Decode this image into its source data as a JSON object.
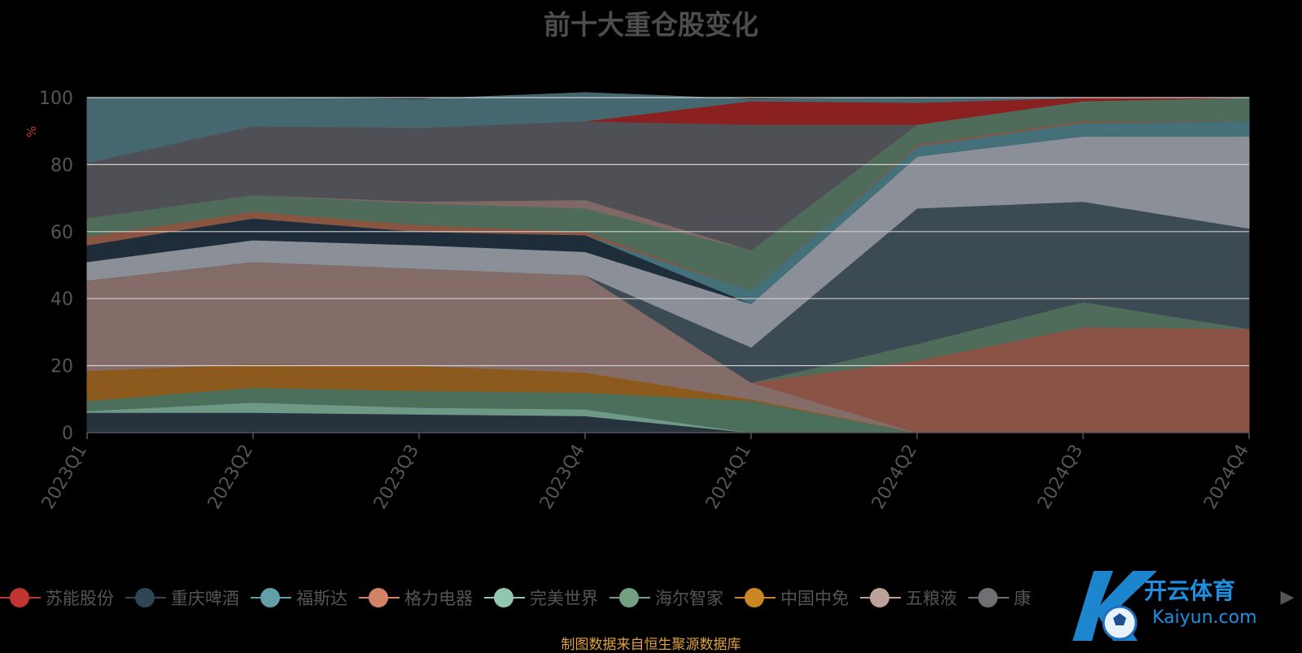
{
  "page": {
    "title": "前十大重仓股变化",
    "source": "制图数据来自恒生聚源数据库",
    "y_unit": "%"
  },
  "chart_data": {
    "type": "area",
    "stacked": true,
    "title": "前十大重仓股变化",
    "xlabel": "",
    "ylabel": "%",
    "categories": [
      "2023Q1",
      "2023Q2",
      "2023Q3",
      "2023Q4",
      "2024Q1",
      "2024Q2",
      "2024Q3",
      "2024Q4"
    ],
    "ylim": [
      0,
      100
    ],
    "yticks": [
      0,
      20,
      40,
      60,
      80,
      100
    ],
    "grid": true,
    "legend_position": "bottom",
    "series": [
      {
        "name": "",
        "color": "#26323c",
        "values": [
          6,
          6,
          5.5,
          5,
          0,
          0,
          0,
          0
        ]
      },
      {
        "name": "",
        "color": "#6f9987",
        "values": [
          0.5,
          3,
          2,
          2,
          0,
          0,
          0,
          0
        ]
      },
      {
        "name": "",
        "color": "#4b6f5a",
        "values": [
          3,
          4.5,
          5,
          5,
          9.5,
          0,
          0,
          0
        ]
      },
      {
        "name": "",
        "color": "#8d5a1e",
        "values": [
          9,
          7,
          7.5,
          6,
          0.5,
          0,
          0,
          0
        ]
      },
      {
        "name": "",
        "color": "#846d69",
        "values": [
          27,
          30.5,
          29,
          29,
          5,
          0,
          0,
          0
        ]
      },
      {
        "name": "苏能股份",
        "color": "#8b5246",
        "values": [
          0,
          0,
          0,
          0,
          0,
          21.5,
          31.5,
          31
        ]
      },
      {
        "name": "海尔智家",
        "color": "#4f6b59",
        "values": [
          0,
          0,
          0,
          0,
          0,
          5,
          7.5,
          0
        ]
      },
      {
        "name": "重庆啤酒",
        "color": "#3c4a53",
        "values": [
          0,
          0,
          0,
          0,
          10.5,
          40.5,
          30,
          30
        ]
      },
      {
        "name": "",
        "color": "#8b8f98",
        "values": [
          5.5,
          6.5,
          7,
          7,
          13,
          15.5,
          19.5,
          27.5
        ]
      },
      {
        "name": "",
        "color": "#1f2d3a",
        "values": [
          5,
          6.5,
          4,
          5,
          0,
          0,
          0,
          0
        ]
      },
      {
        "name": "福斯达",
        "color": "#44707a",
        "values": [
          0,
          0,
          0,
          0,
          4,
          3,
          4,
          4.5
        ]
      },
      {
        "name": "格力电器",
        "color": "#8a5540",
        "values": [
          2.5,
          2,
          2,
          1,
          0,
          0.5,
          0.5,
          0
        ]
      },
      {
        "name": "海尔智家",
        "color": "#4f6b59",
        "values": [
          5.5,
          5,
          6.5,
          7,
          12,
          6,
          6,
          7
        ]
      },
      {
        "name": "",
        "color": "#806866",
        "values": [
          0,
          0,
          0.5,
          2.5,
          0,
          0,
          0,
          0
        ]
      },
      {
        "name": "",
        "color": "#4f5055",
        "values": [
          16.5,
          20.5,
          22,
          23.5,
          37.5,
          0,
          0,
          0
        ]
      },
      {
        "name": "苏能股份",
        "color": "#8b2020",
        "values": [
          0,
          0,
          0,
          0,
          7,
          6.5,
          1,
          0
        ]
      },
      {
        "name": "",
        "color": "#45676f",
        "values": [
          19.5,
          8.5,
          8.5,
          8.5,
          0.5,
          1.5,
          0,
          0
        ]
      }
    ],
    "legend": [
      {
        "name": "苏能股份",
        "color": "#c23531"
      },
      {
        "name": "重庆啤酒",
        "color": "#2f4554"
      },
      {
        "name": "福斯达",
        "color": "#61a0a8"
      },
      {
        "name": "格力电器",
        "color": "#d48265"
      },
      {
        "name": "完美世界",
        "color": "#91c7ae"
      },
      {
        "name": "海尔智家",
        "color": "#749f83"
      },
      {
        "name": "中国中免",
        "color": "#ca8622"
      },
      {
        "name": "五粮液",
        "color": "#bda29a"
      },
      {
        "name": "康",
        "color": "#6e7074"
      }
    ]
  }
}
